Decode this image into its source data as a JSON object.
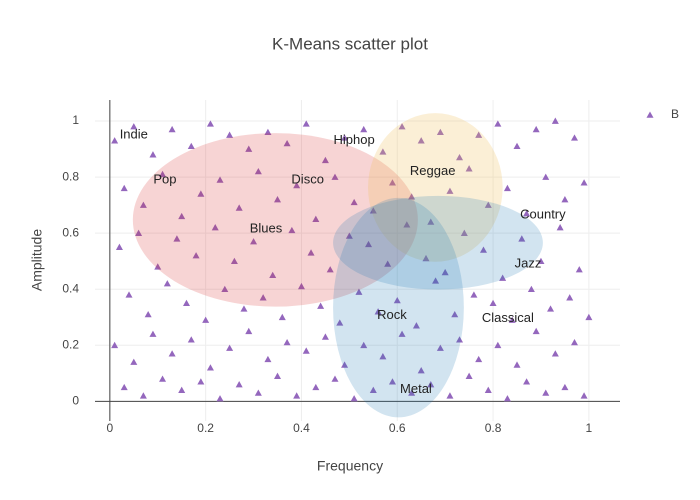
{
  "chart_data": {
    "type": "scatter",
    "title": "K-Means scatter plot",
    "xlabel": "Frequency",
    "ylabel": "Amplitude",
    "xlim": [
      -0.031,
      1.065
    ],
    "ylim": [
      -0.07,
      1.075
    ],
    "xticks": [
      0,
      0.2,
      0.4,
      0.6,
      0.8,
      1
    ],
    "yticks": [
      0,
      0.2,
      0.4,
      0.6,
      0.8,
      1
    ],
    "grid": true,
    "legend": "top-right",
    "series": [
      {
        "name": "B",
        "color": "#9467bd",
        "marker": "triangle-up",
        "x": [
          0.01,
          0.05,
          0.09,
          0.13,
          0.17,
          0.21,
          0.25,
          0.29,
          0.33,
          0.37,
          0.41,
          0.45,
          0.49,
          0.53,
          0.57,
          0.61,
          0.65,
          0.69,
          0.73,
          0.77,
          0.81,
          0.85,
          0.89,
          0.93,
          0.97,
          0.03,
          0.07,
          0.11,
          0.15,
          0.19,
          0.23,
          0.27,
          0.31,
          0.35,
          0.39,
          0.43,
          0.47,
          0.51,
          0.55,
          0.59,
          0.63,
          0.67,
          0.71,
          0.75,
          0.79,
          0.83,
          0.87,
          0.91,
          0.95,
          0.99,
          0.02,
          0.06,
          0.1,
          0.14,
          0.18,
          0.22,
          0.26,
          0.3,
          0.34,
          0.38,
          0.42,
          0.46,
          0.5,
          0.54,
          0.58,
          0.62,
          0.66,
          0.7,
          0.74,
          0.78,
          0.82,
          0.86,
          0.9,
          0.94,
          0.98,
          0.04,
          0.08,
          0.12,
          0.16,
          0.2,
          0.24,
          0.28,
          0.32,
          0.36,
          0.4,
          0.44,
          0.48,
          0.52,
          0.56,
          0.6,
          0.64,
          0.68,
          0.72,
          0.76,
          0.8,
          0.84,
          0.88,
          0.92,
          0.96,
          1.0,
          0.01,
          0.05,
          0.09,
          0.13,
          0.17,
          0.21,
          0.25,
          0.29,
          0.33,
          0.37,
          0.41,
          0.45,
          0.49,
          0.53,
          0.57,
          0.61,
          0.65,
          0.69,
          0.73,
          0.77,
          0.81,
          0.85,
          0.89,
          0.93,
          0.97,
          0.03,
          0.07,
          0.11,
          0.15,
          0.19,
          0.23,
          0.27,
          0.31,
          0.35,
          0.39,
          0.43,
          0.47,
          0.51,
          0.55,
          0.59,
          0.63,
          0.67,
          0.71,
          0.75,
          0.79,
          0.83,
          0.87,
          0.91,
          0.95,
          0.99
        ],
        "values": [
          0.93,
          0.98,
          0.88,
          0.97,
          0.91,
          0.99,
          0.95,
          0.9,
          0.96,
          0.92,
          0.99,
          0.86,
          0.94,
          0.97,
          0.89,
          0.98,
          0.93,
          0.96,
          0.87,
          0.95,
          0.99,
          0.91,
          0.97,
          1.0,
          0.94,
          0.76,
          0.7,
          0.81,
          0.66,
          0.74,
          0.79,
          0.69,
          0.82,
          0.72,
          0.77,
          0.65,
          0.8,
          0.71,
          0.68,
          0.78,
          0.73,
          0.64,
          0.75,
          0.83,
          0.7,
          0.76,
          0.67,
          0.8,
          0.72,
          0.78,
          0.55,
          0.6,
          0.48,
          0.58,
          0.52,
          0.62,
          0.5,
          0.57,
          0.45,
          0.61,
          0.53,
          0.47,
          0.59,
          0.56,
          0.49,
          0.63,
          0.51,
          0.46,
          0.6,
          0.54,
          0.44,
          0.58,
          0.5,
          0.62,
          0.47,
          0.38,
          0.31,
          0.42,
          0.35,
          0.29,
          0.4,
          0.33,
          0.37,
          0.3,
          0.41,
          0.34,
          0.28,
          0.39,
          0.32,
          0.36,
          0.27,
          0.43,
          0.31,
          0.38,
          0.35,
          0.29,
          0.4,
          0.33,
          0.37,
          0.3,
          0.2,
          0.14,
          0.24,
          0.17,
          0.22,
          0.12,
          0.19,
          0.25,
          0.15,
          0.21,
          0.18,
          0.23,
          0.13,
          0.2,
          0.16,
          0.24,
          0.11,
          0.19,
          0.22,
          0.15,
          0.2,
          0.13,
          0.25,
          0.17,
          0.21,
          0.05,
          0.02,
          0.08,
          0.04,
          0.07,
          0.01,
          0.06,
          0.03,
          0.09,
          0.02,
          0.05,
          0.08,
          0.01,
          0.04,
          0.07,
          0.03,
          0.06,
          0.02,
          0.09,
          0.04,
          0.01,
          0.07,
          0.03,
          0.05,
          0.02
        ]
      }
    ],
    "shapes": [
      {
        "type": "circle",
        "x0": 0.048,
        "x1": 0.643,
        "y0": 0.338,
        "y1": 0.957,
        "color": "rgba(214,39,40,0.2)"
      },
      {
        "type": "circle",
        "x0": 0.539,
        "x1": 0.82,
        "y0": 0.498,
        "y1": 1.028,
        "color": "rgba(240,190,90,0.25)"
      },
      {
        "type": "circle",
        "x0": 0.466,
        "x1": 0.904,
        "y0": 0.399,
        "y1": 0.733,
        "color": "rgba(31,119,180,0.2)"
      },
      {
        "type": "circle",
        "x0": 0.466,
        "x1": 0.739,
        "y0": -0.057,
        "y1": 0.726,
        "color": "rgba(31,119,180,0.2)"
      }
    ],
    "annotations": [
      {
        "text": "Indie",
        "x": 0.05,
        "y": 0.95
      },
      {
        "text": "Pop",
        "x": 0.115,
        "y": 0.79
      },
      {
        "text": "Disco",
        "x": 0.413,
        "y": 0.79
      },
      {
        "text": "Hiphop",
        "x": 0.51,
        "y": 0.93
      },
      {
        "text": "Reggae",
        "x": 0.674,
        "y": 0.82
      },
      {
        "text": "Country",
        "x": 0.904,
        "y": 0.665
      },
      {
        "text": "Blues",
        "x": 0.326,
        "y": 0.615
      },
      {
        "text": "Jazz",
        "x": 0.873,
        "y": 0.49
      },
      {
        "text": "Rock",
        "x": 0.589,
        "y": 0.306
      },
      {
        "text": "Classical",
        "x": 0.831,
        "y": 0.295
      },
      {
        "text": "Metal",
        "x": 0.639,
        "y": 0.043
      }
    ]
  }
}
